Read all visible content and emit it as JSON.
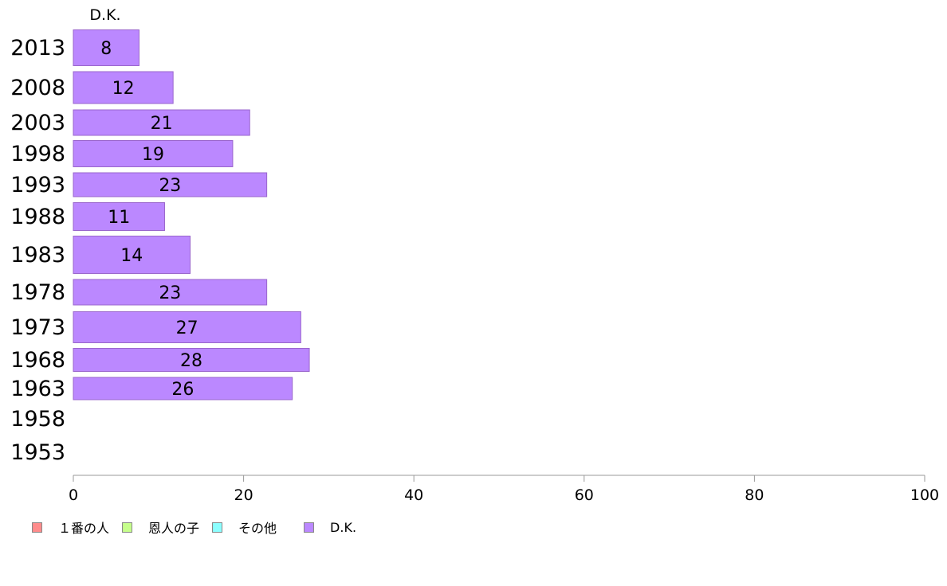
{
  "chart_data": {
    "type": "bar",
    "orientation": "horizontal",
    "stacked": true,
    "categories": [
      "2013",
      "2008",
      "2003",
      "1998",
      "1993",
      "1988",
      "1983",
      "1978",
      "1973",
      "1968",
      "1963",
      "1958",
      "1953"
    ],
    "series": [
      {
        "name": "１番の人",
        "color": "#ff8c8c",
        "values": [
          0,
          0,
          0,
          0,
          0,
          0,
          0,
          0,
          0,
          0,
          0,
          0,
          0
        ]
      },
      {
        "name": "恩人の子",
        "color": "#c6ff8c",
        "values": [
          0,
          0,
          0,
          0,
          0,
          0,
          0,
          0,
          0,
          0,
          0,
          0,
          0
        ]
      },
      {
        "name": "その他",
        "color": "#8cffff",
        "values": [
          0,
          0,
          0,
          0,
          0,
          0,
          0,
          0,
          0,
          0,
          0,
          0,
          0
        ]
      },
      {
        "name": "D.K.",
        "color": "#bb88ff",
        "values": [
          8,
          12,
          21,
          19,
          23,
          11,
          14,
          23,
          27,
          28,
          26,
          null,
          null
        ],
        "data_labels": [
          "8",
          "12",
          "21",
          "19",
          "23",
          "11",
          "14",
          "23",
          "27",
          "28",
          "26",
          "",
          ""
        ]
      }
    ],
    "top_series_label": "D.K.",
    "xlim": [
      0,
      100
    ],
    "xticks": [
      "0",
      "20",
      "40",
      "60",
      "80",
      "100"
    ],
    "grid": false,
    "legend_position": "bottom-left"
  }
}
